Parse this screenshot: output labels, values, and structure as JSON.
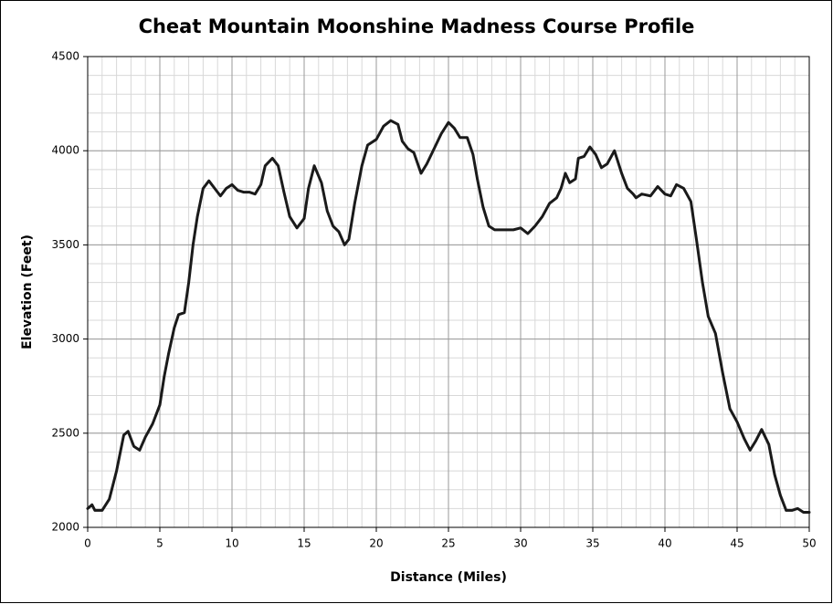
{
  "chart_data": {
    "type": "line",
    "title": "Cheat Mountain Moonshine Madness Course Profile",
    "xlabel": "Distance (Miles)",
    "ylabel": "Elevation (Feet)",
    "x": [
      0,
      0.3,
      0.5,
      1,
      1.5,
      2,
      2.5,
      2.8,
      3.2,
      3.6,
      4,
      4.5,
      5,
      5.3,
      5.6,
      6,
      6.3,
      6.7,
      7,
      7.3,
      7.6,
      8,
      8.4,
      8.8,
      9.2,
      9.6,
      10,
      10.4,
      10.8,
      11.2,
      11.6,
      12,
      12.3,
      12.8,
      13.2,
      13.6,
      14,
      14.5,
      15,
      15.3,
      15.7,
      16.2,
      16.6,
      17,
      17.4,
      17.8,
      18.1,
      18.5,
      19,
      19.4,
      20,
      20.5,
      21,
      21.5,
      21.8,
      22.2,
      22.6,
      23.1,
      23.5,
      24,
      24.5,
      25,
      25.4,
      25.8,
      26.3,
      26.7,
      27,
      27.4,
      27.8,
      28.2,
      29,
      29.5,
      30,
      30.5,
      31,
      31.5,
      32,
      32.5,
      32.8,
      33.1,
      33.4,
      33.8,
      34,
      34.4,
      34.8,
      35.2,
      35.6,
      36,
      36.5,
      37,
      37.4,
      37.8,
      38,
      38.4,
      39,
      39.5,
      40,
      40.4,
      40.8,
      41.3,
      41.8,
      42.2,
      42.6,
      43,
      43.5,
      44,
      44.5,
      45,
      45.5,
      45.9,
      46.3,
      46.7,
      47.2,
      47.6,
      48,
      48.4,
      48.8,
      49.2,
      49.6,
      50
    ],
    "series": [
      {
        "name": "Elevation",
        "color": "#1a1a1a",
        "values": [
          2100,
          2120,
          2090,
          2090,
          2150,
          2300,
          2490,
          2510,
          2430,
          2410,
          2480,
          2550,
          2650,
          2800,
          2920,
          3060,
          3130,
          3140,
          3300,
          3500,
          3650,
          3800,
          3840,
          3800,
          3760,
          3800,
          3820,
          3790,
          3780,
          3780,
          3770,
          3820,
          3920,
          3960,
          3920,
          3780,
          3650,
          3590,
          3640,
          3800,
          3920,
          3830,
          3680,
          3600,
          3570,
          3500,
          3530,
          3720,
          3920,
          4030,
          4060,
          4130,
          4160,
          4140,
          4050,
          4010,
          3990,
          3880,
          3930,
          4010,
          4090,
          4150,
          4120,
          4070,
          4070,
          3980,
          3850,
          3700,
          3600,
          3580,
          3580,
          3580,
          3590,
          3560,
          3600,
          3650,
          3720,
          3750,
          3800,
          3880,
          3830,
          3850,
          3960,
          3970,
          4020,
          3980,
          3910,
          3930,
          4000,
          3880,
          3800,
          3770,
          3750,
          3770,
          3760,
          3810,
          3770,
          3760,
          3820,
          3800,
          3730,
          3520,
          3300,
          3120,
          3030,
          2820,
          2630,
          2560,
          2470,
          2410,
          2460,
          2520,
          2440,
          2280,
          2170,
          2090,
          2090,
          2100,
          2080,
          2080
        ]
      }
    ],
    "xlim": [
      0,
      50
    ],
    "xticks": [
      0,
      5,
      10,
      15,
      20,
      25,
      30,
      35,
      40,
      45,
      50
    ],
    "ylim": [
      2000,
      4500
    ],
    "yticks": [
      2000,
      2500,
      3000,
      3500,
      4000,
      4500
    ],
    "grid": true,
    "minor_grid_step": {
      "x": 1,
      "y": 100
    }
  }
}
